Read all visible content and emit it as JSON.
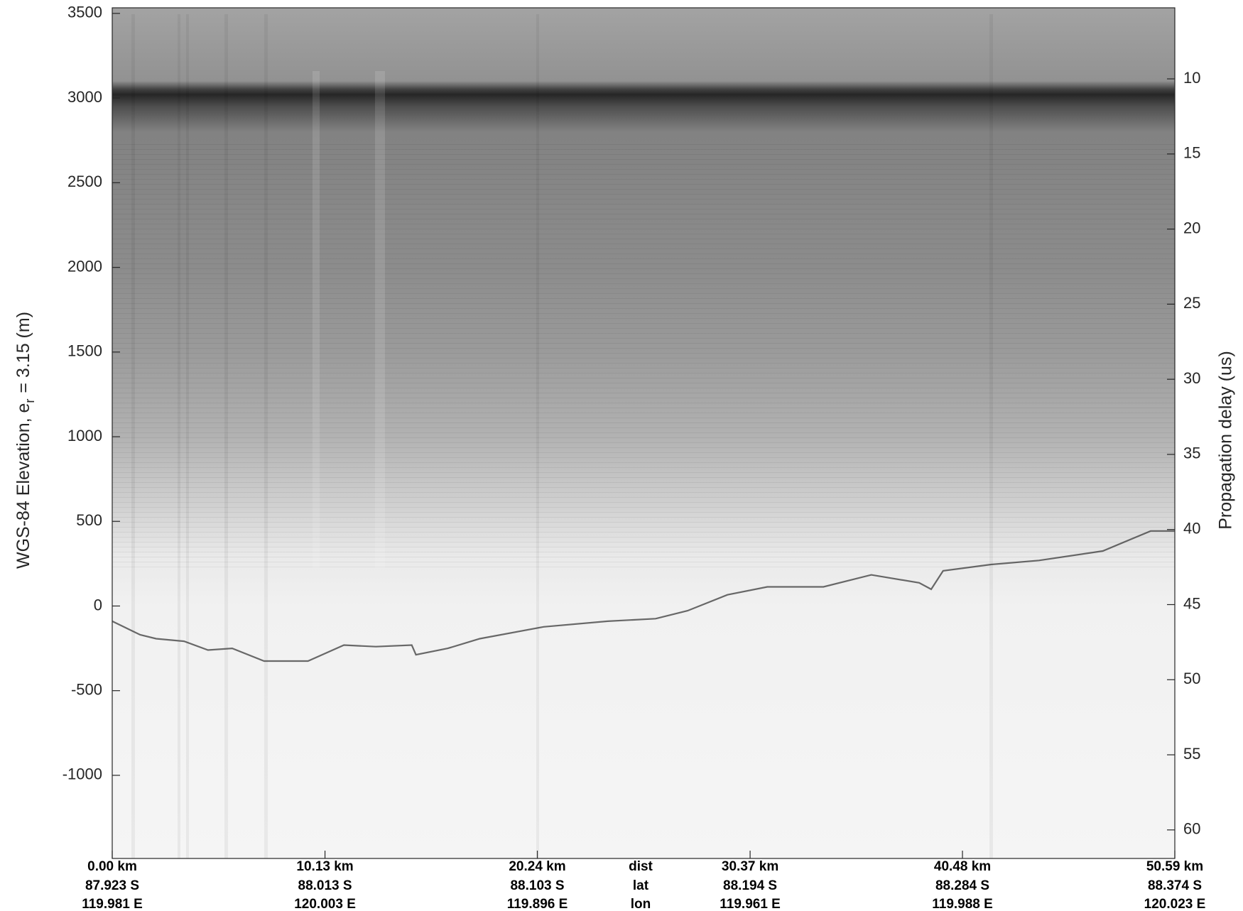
{
  "chart_data": {
    "type": "echogram",
    "y_label": "WGS-84 Elevation, e",
    "y_label_sub": "r",
    "y_label_end": "= 3.15 (m)",
    "y2_label": "Propagation delay (us)",
    "ylim": [
      -1491,
      3533
    ],
    "yticks": [
      -1000,
      -500,
      0,
      500,
      1000,
      1500,
      2000,
      2500,
      3000,
      3500
    ],
    "y2lim": [
      5.27,
      61.9
    ],
    "y2ticks": [
      10,
      15,
      20,
      25,
      30,
      35,
      40,
      45,
      50,
      55,
      60
    ],
    "xlim": [
      0,
      50.59
    ],
    "xticks": [
      {
        "value": 0,
        "label": "0.00 km"
      },
      {
        "value": 10.13,
        "label": "10.13 km"
      },
      {
        "value": 20.24,
        "label": "20.24 km"
      },
      {
        "value": 30.37,
        "label": "30.37 km"
      },
      {
        "value": 40.48,
        "label": "40.48 km"
      },
      {
        "value": 50.59,
        "label": "50.59 km"
      }
    ],
    "x_tick_lat": [
      "87.923 S",
      "88.013 S",
      "88.103 S",
      "88.194 S",
      "88.284 S",
      "88.374 S"
    ],
    "x_tick_lon": [
      "119.981 E",
      "120.003 E",
      "119.896 E",
      "119.961 E",
      "119.988 E",
      "120.023 E"
    ],
    "x_row_labels": [
      "dist",
      "lat",
      "lon"
    ],
    "color": "#3a3a3a",
    "x": [
      0,
      1.33,
      2.09,
      3.42,
      4.56,
      5.71,
      7.23,
      9.32,
      11.03,
      12.55,
      14.26,
      14.46,
      15.98,
      17.5,
      20.54,
      23.59,
      25.87,
      27.39,
      29.29,
      31.19,
      33.86,
      36.14,
      38.42,
      38.99,
      39.56,
      41.84,
      44.12,
      47.16,
      49.44,
      50.59
    ],
    "values": [
      -90,
      -170,
      -193,
      -208,
      -260,
      -250,
      -325,
      -325,
      -231,
      -240,
      -231,
      -288,
      -250,
      -193,
      -123,
      -90,
      -75,
      -28,
      66,
      113,
      113,
      184,
      137,
      99,
      208,
      245,
      269,
      325,
      443,
      443
    ]
  }
}
